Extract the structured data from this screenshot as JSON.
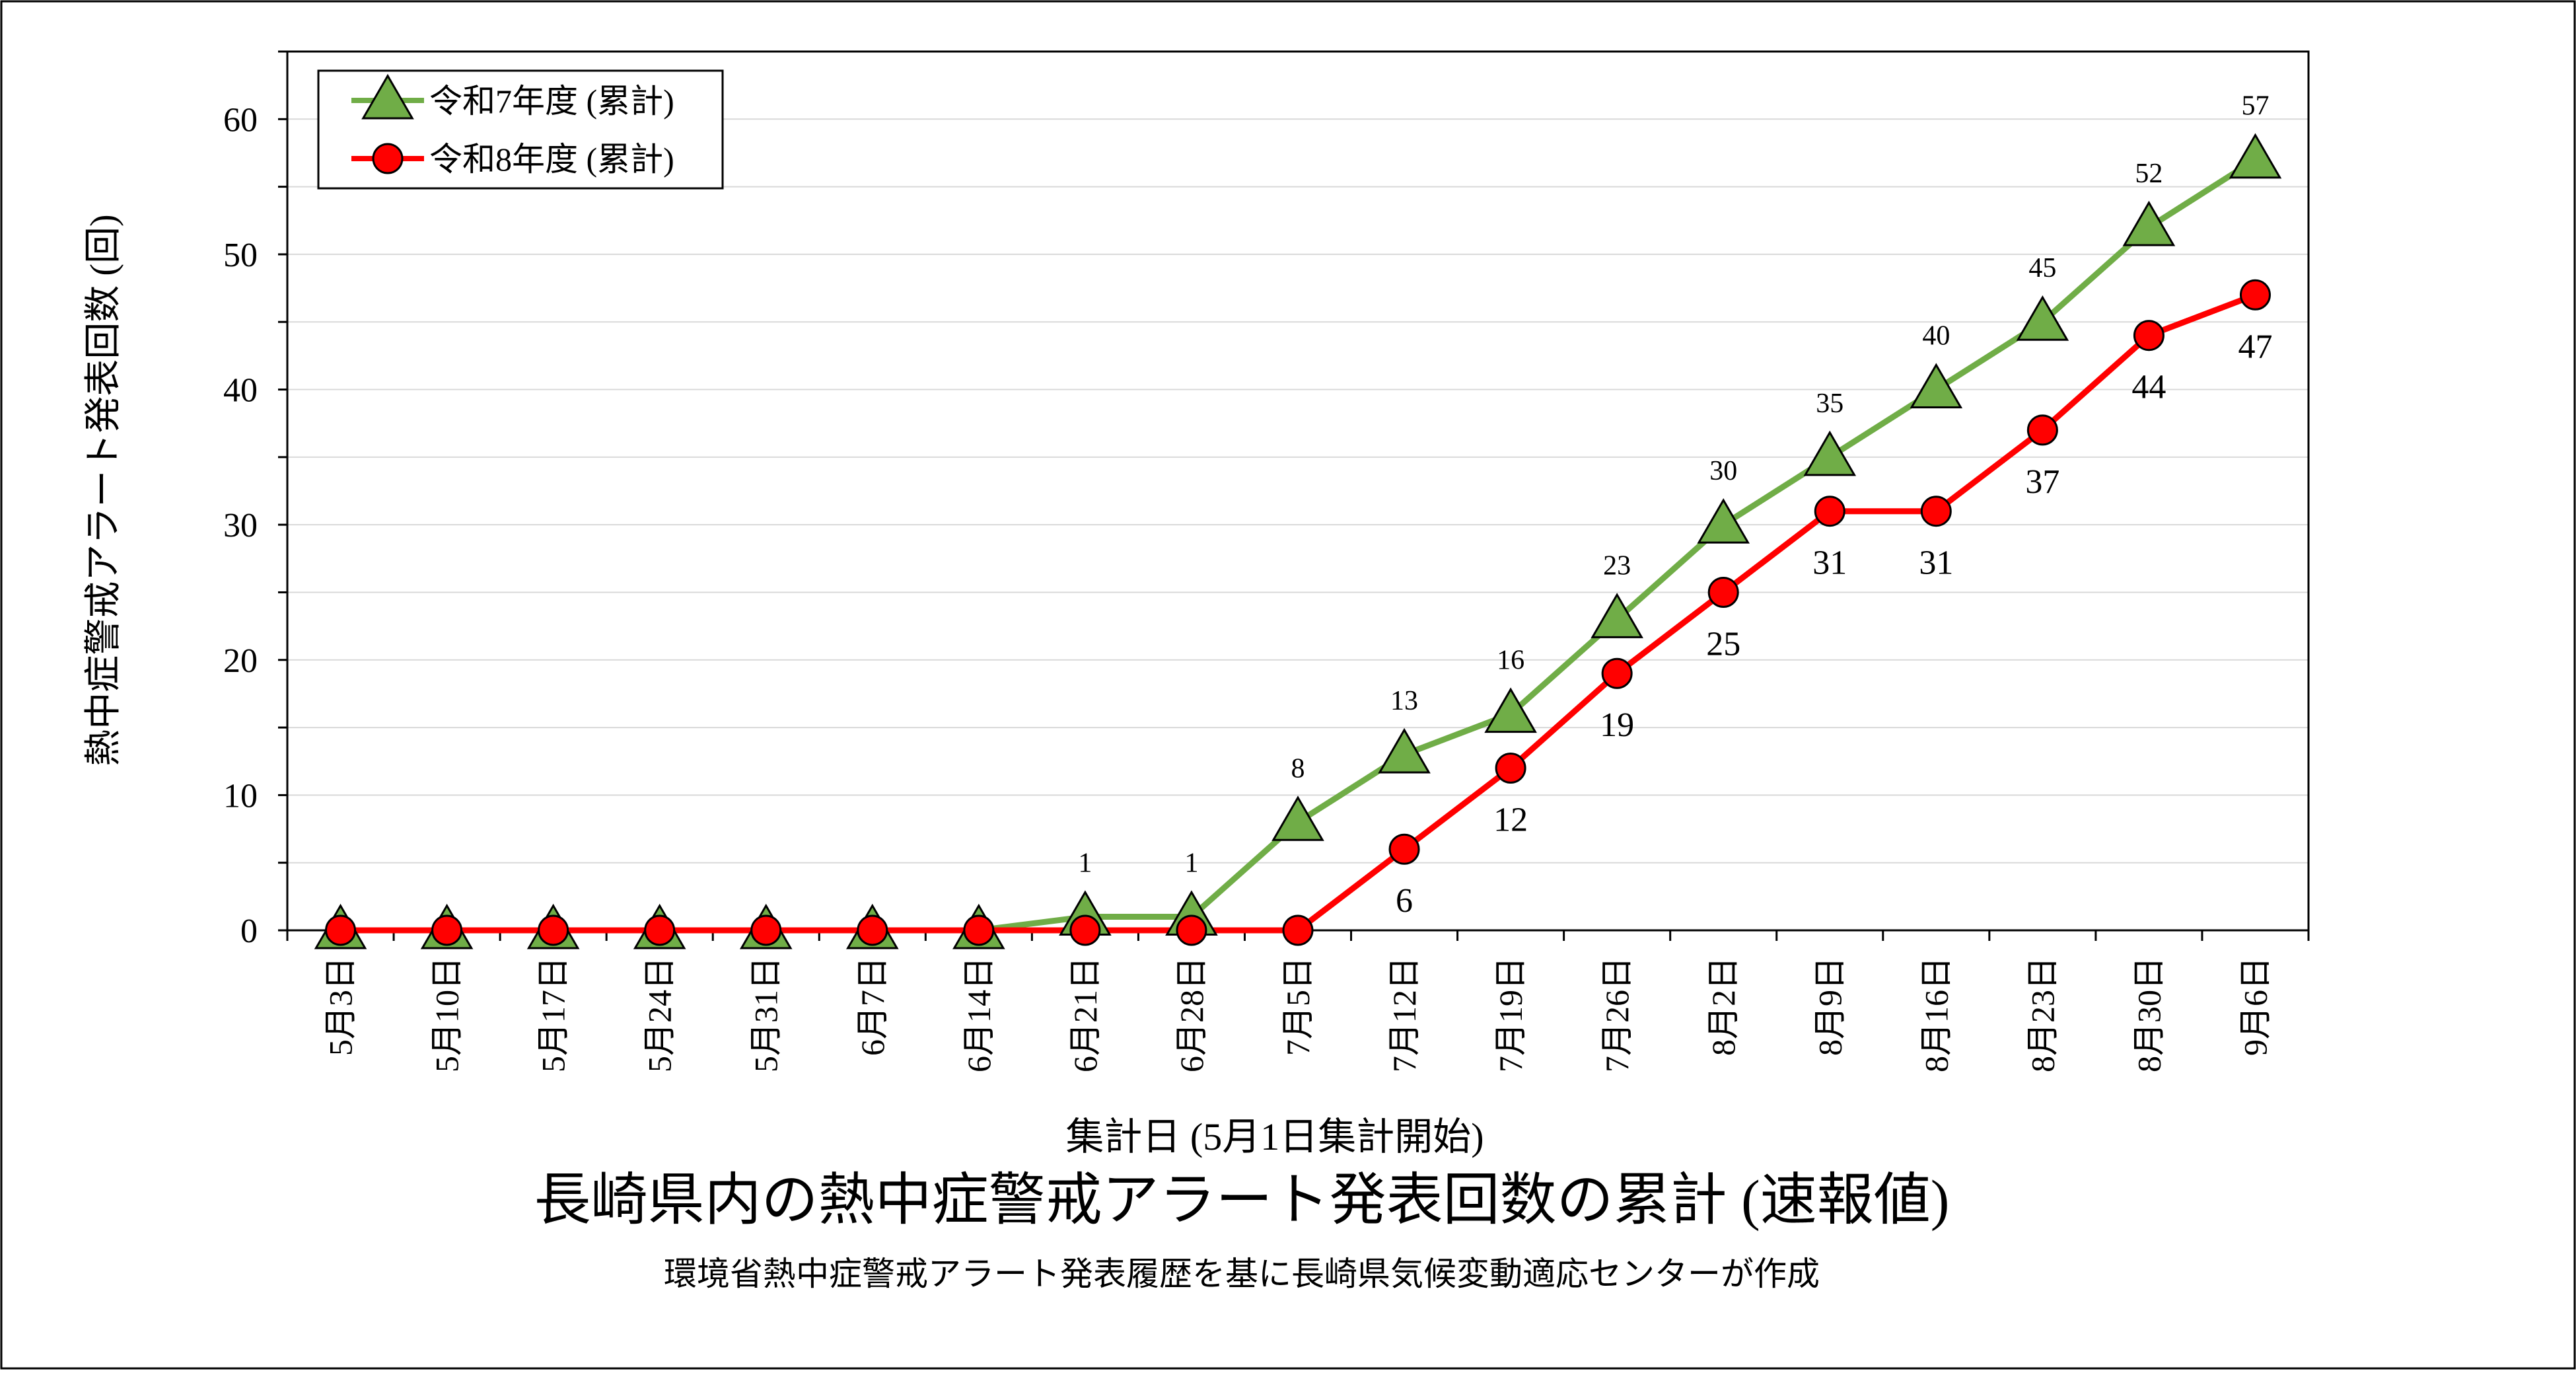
{
  "chart_data": {
    "type": "line",
    "title": "長崎県内の熱中症警戒アラート発表回数の累計 (速報値)",
    "subtitle": "環境省熱中症警戒アラート発表履歴を基に長崎県気候変動適応センターが作成",
    "xlabel": "集計日 (5月1日集計開始)",
    "ylabel": "熱中症警戒アラート発表回数 (回)",
    "ylim": [
      0,
      65
    ],
    "yticks": [
      0,
      10,
      20,
      30,
      40,
      50,
      60
    ],
    "grid": true,
    "legend_position": "top-left",
    "categories": [
      "5月3日",
      "5月10日",
      "5月17日",
      "5月24日",
      "5月31日",
      "6月7日",
      "6月14日",
      "6月21日",
      "6月28日",
      "7月5日",
      "7月12日",
      "7月19日",
      "7月26日",
      "8月2日",
      "8月9日",
      "8月16日",
      "8月23日",
      "8月30日",
      "9月6日"
    ],
    "series": [
      {
        "name": "令和7年度 (累計)",
        "marker": "triangle",
        "color": "#70AD47",
        "marker_fill": "#70AD47",
        "values": [
          0,
          0,
          0,
          0,
          0,
          0,
          0,
          1,
          1,
          8,
          13,
          16,
          23,
          30,
          35,
          40,
          45,
          52,
          57
        ],
        "labels": [
          "",
          "",
          "",
          "",
          "",
          "",
          "",
          "1",
          "1",
          "8",
          "13",
          "16",
          "23",
          "30",
          "35",
          "40",
          "45",
          "52",
          "57"
        ],
        "label_position": "above"
      },
      {
        "name": "令和8年度 (累計)",
        "marker": "circle",
        "color": "#FF0000",
        "marker_fill": "#FF0000",
        "values": [
          0,
          0,
          0,
          0,
          0,
          0,
          0,
          0,
          0,
          0,
          6,
          12,
          19,
          25,
          31,
          31,
          37,
          44,
          47
        ],
        "labels": [
          "",
          "",
          "",
          "",
          "",
          "",
          "",
          "",
          "",
          "",
          "6",
          "12",
          "19",
          "25",
          "31",
          "31",
          "37",
          "44",
          "47"
        ],
        "label_position": "below"
      }
    ]
  }
}
